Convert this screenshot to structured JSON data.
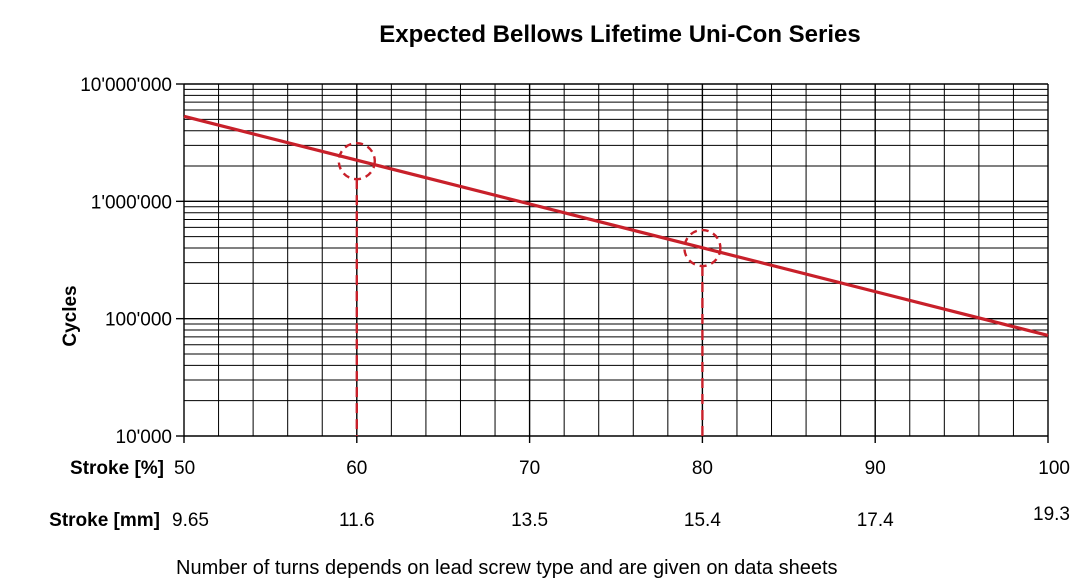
{
  "chart_data": {
    "type": "line",
    "title": "Expected Bellows Lifetime Uni-Con Series",
    "ylabel": "Cycles",
    "y_scale": "log",
    "ylim": [
      10000,
      10000000
    ],
    "y_ticks": [
      10000,
      100000,
      1000000,
      10000000
    ],
    "y_tick_labels": [
      "10'000",
      "100'000",
      "1'000'000",
      "10'000'000"
    ],
    "xlim": [
      50,
      100
    ],
    "x_primary_label": "Stroke [%]",
    "x_ticks": [
      50,
      60,
      70,
      80,
      90,
      100
    ],
    "x_tick_labels": [
      "50",
      "60",
      "70",
      "80",
      "90",
      "100"
    ],
    "x_secondary_label": "Stroke [mm]",
    "x_secondary_tick_labels": [
      "9.65",
      "11.6",
      "13.5",
      "15.4",
      "17.4",
      "19.3"
    ],
    "grid": true,
    "series": [
      {
        "x": [
          50,
          100
        ],
        "y": [
          5300000,
          72000
        ],
        "color": "#c8202a"
      }
    ],
    "annotations": [
      {
        "kind": "circled-point",
        "x": 60,
        "y": 2200000,
        "color": "#c8202a"
      },
      {
        "kind": "circled-point",
        "x": 80,
        "y": 400000,
        "color": "#c8202a"
      }
    ],
    "note": "Number of turns depends on lead screw type and are given on data sheets"
  }
}
